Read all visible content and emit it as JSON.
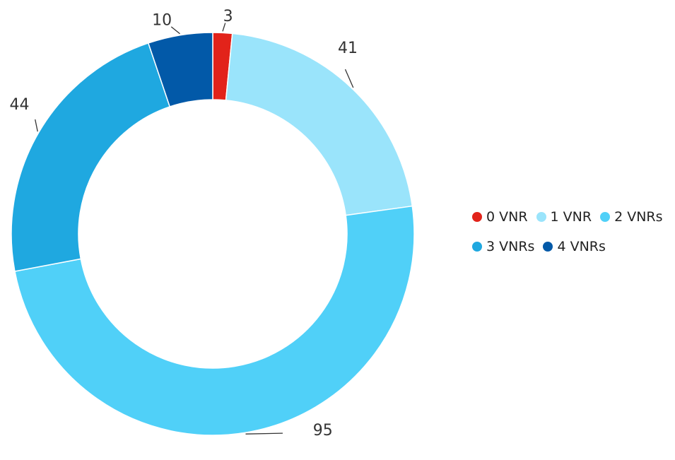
{
  "chart_data": {
    "type": "pie",
    "style": "donut",
    "categories": [
      "0 VNR",
      "1 VNR",
      "2 VNRs",
      "3 VNRs",
      "4 VNRs"
    ],
    "values": [
      3,
      41,
      95,
      44,
      10
    ],
    "data_labels": [
      "3",
      "41",
      "95",
      "44",
      "10"
    ],
    "colors": [
      "#e2231a",
      "#9ae4fb",
      "#50d0f8",
      "#1fa8e0",
      "#0259a8"
    ],
    "legend_position": "right",
    "start_angle": "top, clockwise",
    "title": "",
    "xlabel": "",
    "ylabel": ""
  },
  "legend": {
    "rows": [
      [
        {
          "label": "0 VNR",
          "color": "#e2231a"
        },
        {
          "label": "1 VNR",
          "color": "#9ae4fb"
        },
        {
          "label": "2 VNRs",
          "color": "#50d0f8"
        }
      ],
      [
        {
          "label": "3 VNRs",
          "color": "#1fa8e0"
        },
        {
          "label": "4 VNRs",
          "color": "#0259a8"
        }
      ]
    ]
  }
}
